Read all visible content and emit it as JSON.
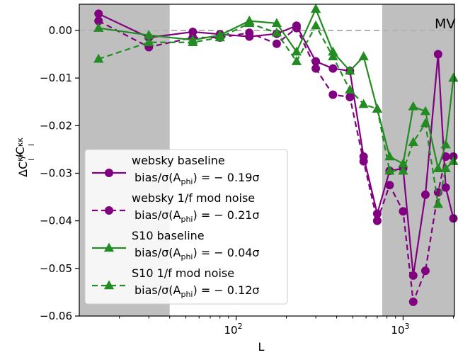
{
  "chart_data": {
    "type": "line",
    "title": "",
    "corner_label": "MV",
    "xlabel": "L",
    "ylabel": "ΔC_l^{κκ}/C_l^{κκ}",
    "xscale": "log",
    "xlim": [
      11.5,
      2030
    ],
    "ylim": [
      -0.06,
      0.0055
    ],
    "x_ticks": [
      {
        "value": 100,
        "base": "10",
        "exp": "2"
      },
      {
        "value": 1000,
        "base": "10",
        "exp": "3"
      }
    ],
    "y_ticks": [
      {
        "value": 0.0,
        "label": "0.00"
      },
      {
        "value": -0.01,
        "label": "−0.01"
      },
      {
        "value": -0.02,
        "label": "−0.02"
      },
      {
        "value": -0.03,
        "label": "−0.03"
      },
      {
        "value": -0.04,
        "label": "−0.04"
      },
      {
        "value": -0.05,
        "label": "−0.05"
      },
      {
        "value": -0.06,
        "label": "−0.06"
      }
    ],
    "shaded_regions": [
      [
        11.5,
        40
      ],
      [
        750,
        2030
      ]
    ],
    "zero_line": {
      "y": 0.0,
      "style": "dashed",
      "color": "#b3b3b3"
    },
    "grid": false,
    "legend_position": "lower-left",
    "series": [
      {
        "label_line1": "websky baseline",
        "label_line2_prefix": "bias/σ(A",
        "label_line2_sub": "phi",
        "label_line2_suffix": ") = − 0.19σ",
        "color": "#800080",
        "marker": "circle",
        "linestyle": "solid",
        "x": [
          15,
          30,
          55,
          80,
          120,
          175,
          230,
          300,
          380,
          480,
          580,
          700,
          830,
          1000,
          1150,
          1360,
          1620,
          1800,
          2000
        ],
        "y": [
          0.0035,
          -0.0015,
          -0.0003,
          -0.0008,
          -0.0013,
          -0.0007,
          0.001,
          -0.0065,
          -0.008,
          -0.0085,
          -0.0265,
          -0.0385,
          -0.0295,
          -0.029,
          -0.0515,
          -0.0345,
          -0.005,
          -0.033,
          -0.0395
        ]
      },
      {
        "label_line1": "websky 1/f mod noise",
        "label_line2_prefix": "bias/σ(A",
        "label_line2_sub": "phi",
        "label_line2_suffix": ") = − 0.21σ",
        "color": "#800080",
        "marker": "circle",
        "linestyle": "dashed",
        "x": [
          15,
          30,
          55,
          80,
          120,
          175,
          230,
          300,
          380,
          480,
          580,
          700,
          830,
          1000,
          1150,
          1360,
          1620,
          1800,
          2000
        ],
        "y": [
          0.002,
          -0.0035,
          -0.0015,
          -0.0015,
          -0.0005,
          -0.0028,
          0.0005,
          -0.008,
          -0.0135,
          -0.014,
          -0.0275,
          -0.04,
          -0.0325,
          -0.038,
          -0.057,
          -0.0505,
          -0.034,
          -0.0265,
          -0.0265
        ]
      },
      {
        "label_line1": "S10 baseline",
        "label_line2_prefix": "bias/σ(A",
        "label_line2_sub": "phi",
        "label_line2_suffix": ") = − 0.04σ",
        "color": "#228B22",
        "marker": "triangle",
        "linestyle": "solid",
        "x": [
          15,
          30,
          55,
          80,
          120,
          175,
          230,
          300,
          380,
          480,
          580,
          700,
          830,
          1000,
          1150,
          1360,
          1620,
          1800,
          2000
        ],
        "y": [
          0.0005,
          -0.001,
          -0.002,
          -0.001,
          0.002,
          0.0015,
          -0.0045,
          0.0045,
          -0.0045,
          -0.0085,
          -0.0055,
          -0.0165,
          -0.0265,
          -0.028,
          -0.016,
          -0.017,
          -0.029,
          -0.024,
          -0.01
        ]
      },
      {
        "label_line1": "S10 1/f mod noise",
        "label_line2_prefix": "bias/σ(A",
        "label_line2_sub": "phi",
        "label_line2_suffix": ") = − 0.12σ",
        "color": "#228B22",
        "marker": "triangle",
        "linestyle": "dashed",
        "x": [
          15,
          30,
          55,
          80,
          120,
          175,
          230,
          300,
          380,
          480,
          580,
          700,
          830,
          1000,
          1150,
          1360,
          1620,
          1800,
          2000
        ],
        "y": [
          -0.006,
          -0.0025,
          -0.0025,
          -0.0015,
          0.0015,
          -0.0005,
          -0.0065,
          0.001,
          -0.0055,
          -0.0125,
          -0.0155,
          -0.0165,
          -0.0295,
          -0.0295,
          -0.0235,
          -0.0195,
          -0.0365,
          -0.029,
          -0.0275
        ]
      }
    ]
  }
}
